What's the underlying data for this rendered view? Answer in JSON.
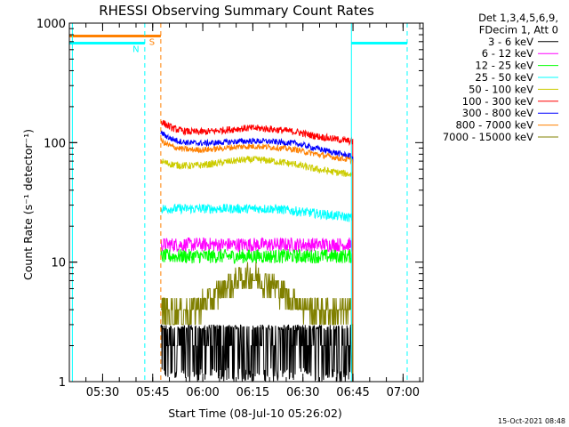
{
  "chart_data": {
    "type": "line",
    "title": "RHESSI Observing Summary Count Rates",
    "xlabel": "Start Time (08-Jul-10 05:26:02)",
    "ylabel": "Count Rate (s⁻¹ detector⁻¹)",
    "yscale": "log",
    "ylim": [
      1,
      1000
    ],
    "xlim_minutes": [
      -6,
      100
    ],
    "x_ticks": [
      {
        "label": "05:30",
        "minute": 3.97
      },
      {
        "label": "05:45",
        "minute": 18.97
      },
      {
        "label": "06:00",
        "minute": 33.97
      },
      {
        "label": "06:15",
        "minute": 48.97
      },
      {
        "label": "06:30",
        "minute": 63.97
      },
      {
        "label": "06:45",
        "minute": 78.97
      },
      {
        "label": "07:00",
        "minute": 93.97
      }
    ],
    "y_ticks": [
      {
        "label": "1",
        "value": 1
      },
      {
        "label": "10",
        "value": 10
      },
      {
        "label": "100",
        "value": 100
      },
      {
        "label": "1000",
        "value": 1000
      }
    ],
    "legend_header": [
      "Det 1,3,4,5,6,9,",
      "FDecim 1, Att 0"
    ],
    "legend_placement": "right",
    "data_start_minute": 21.4,
    "data_end_minute": 78.9,
    "series": [
      {
        "name": "3 - 6 keV",
        "color": "#000000",
        "shape": "low",
        "base": 2.6,
        "peak": 2.6,
        "noise": 0.35
      },
      {
        "name": "6 - 12 keV",
        "color": "#ff00ff",
        "shape": "flat",
        "base": 14,
        "peak": 14.5,
        "noise": 0.06
      },
      {
        "name": "12 - 25 keV",
        "color": "#00ff00",
        "shape": "flat",
        "base": 11.2,
        "peak": 11.8,
        "noise": 0.06
      },
      {
        "name": "25 - 50 keV",
        "color": "#00ffff",
        "shape": "flat",
        "base": 28,
        "peak": 26,
        "noise": 0.04,
        "end": 23.5
      },
      {
        "name": "50 - 100 keV",
        "color": "#cccc00",
        "shape": "bump",
        "base": 62,
        "peak": 72,
        "noise": 0.03,
        "start": 70,
        "end": 54
      },
      {
        "name": "100 - 300 keV",
        "color": "#ff0000",
        "shape": "bump",
        "base": 118,
        "peak": 132,
        "noise": 0.03,
        "start": 152,
        "end": 102
      },
      {
        "name": "300 - 800 keV",
        "color": "#0000ff",
        "shape": "bump",
        "base": 96,
        "peak": 103,
        "noise": 0.025,
        "start": 122,
        "end": 76
      },
      {
        "name": "800 - 7000 keV",
        "color": "#ff8000",
        "shape": "bump",
        "base": 84,
        "peak": 93,
        "noise": 0.025,
        "start": 104,
        "end": 71
      },
      {
        "name": "7000 - 15000 keV",
        "color": "#808000",
        "shape": "bump",
        "base": 3.8,
        "peak": 7.5,
        "noise": 0.12
      }
    ],
    "flags": [
      {
        "label": "S",
        "color": "#ff8000",
        "value": 780,
        "from": -6,
        "to": 21.4
      },
      {
        "label": "N",
        "color": "#00ffff",
        "value": 680,
        "from": -6,
        "to": 16.6
      },
      {
        "label": "",
        "color": "#00ffff",
        "value": 680,
        "from": 78.5,
        "to": 95.2
      }
    ],
    "vlines": [
      {
        "color": "#00ffff",
        "minute": -5.1,
        "style": "solid"
      },
      {
        "color": "#00ffff",
        "minute": 16.6,
        "style": "dashed"
      },
      {
        "color": "#ff8000",
        "minute": 21.4,
        "style": "dashed"
      },
      {
        "color": "#00ffff",
        "minute": 78.5,
        "style": "solid"
      },
      {
        "color": "#00ffff",
        "minute": 95.2,
        "style": "dashed"
      }
    ]
  },
  "timestamp": "15-Oct-2021 08:48"
}
